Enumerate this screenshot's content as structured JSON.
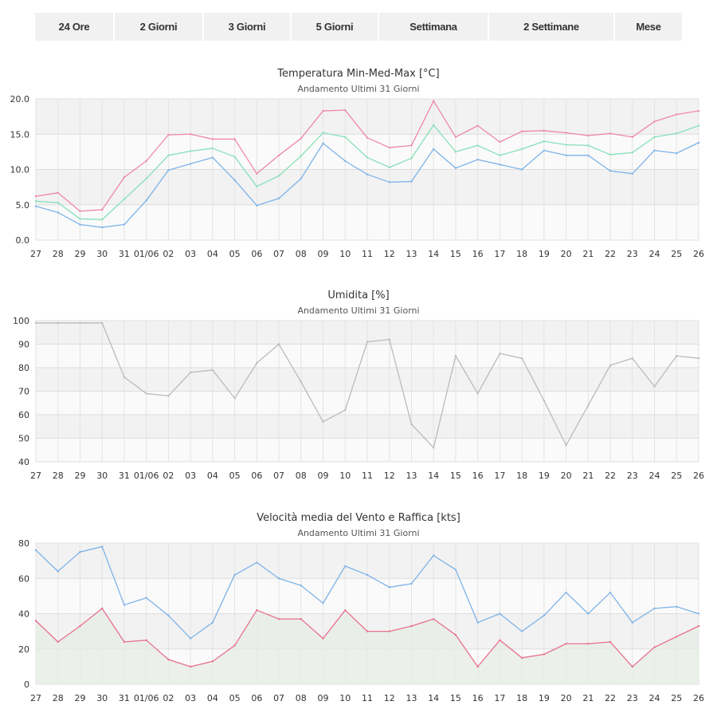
{
  "tabs": [
    {
      "label": "24 Ore"
    },
    {
      "label": "2 Giorni"
    },
    {
      "label": "3 Giorni"
    },
    {
      "label": "5 Giorni"
    },
    {
      "label": "Settimana"
    },
    {
      "label": "2 Settimane"
    },
    {
      "label": "Mese"
    }
  ],
  "colors": {
    "max": "#ee88a8",
    "med": "#86e0b8",
    "min": "#7db3e8",
    "humidity": "#bbbbbb",
    "gust": "#7db3e8",
    "wind_avg": "#e8708e",
    "band_a": "#f2f2f2",
    "band_b": "#fafafa",
    "grid": "#e4e4e4",
    "area_fill": "#e6eee4"
  },
  "chart_data": [
    {
      "type": "line",
      "title": "Temperatura Min-Med-Max [°C]",
      "subtitle": "Andamento Ultimi 31 Giorni",
      "x": [
        "27",
        "28",
        "29",
        "30",
        "31",
        "01/06",
        "02",
        "03",
        "04",
        "05",
        "06",
        "07",
        "08",
        "09",
        "10",
        "11",
        "12",
        "13",
        "14",
        "15",
        "16",
        "17",
        "18",
        "19",
        "20",
        "21",
        "22",
        "23",
        "24",
        "25",
        "26"
      ],
      "yticks": [
        "20.0",
        "15.0",
        "10.0",
        "5.0",
        "0.0"
      ],
      "ylim": [
        0,
        20
      ],
      "grid": "horizontal bands",
      "series": [
        {
          "values": [
            6.2,
            6.7,
            4.1,
            4.3,
            8.9,
            11.2,
            14.9,
            15.0,
            14.3,
            14.3,
            9.4,
            12.0,
            14.4,
            18.3,
            18.4,
            14.5,
            13.1,
            13.4,
            19.7,
            14.6,
            16.2,
            13.9,
            15.4,
            15.5,
            15.2,
            14.8,
            15.1,
            14.6,
            16.8,
            17.8,
            18.3
          ],
          "color_key": "max"
        },
        {
          "values": [
            5.5,
            5.3,
            3.0,
            2.9,
            5.8,
            8.7,
            12.0,
            12.6,
            13.0,
            11.8,
            7.6,
            9.1,
            11.9,
            15.2,
            14.6,
            11.7,
            10.3,
            11.6,
            16.3,
            12.5,
            13.4,
            12.0,
            12.9,
            14.0,
            13.5,
            13.4,
            12.1,
            12.4,
            14.6,
            15.1,
            16.2
          ],
          "color_key": "med"
        },
        {
          "values": [
            4.8,
            3.9,
            2.2,
            1.8,
            2.2,
            5.6,
            9.9,
            10.8,
            11.7,
            8.5,
            4.9,
            5.9,
            8.7,
            13.7,
            11.2,
            9.3,
            8.2,
            8.3,
            12.9,
            10.2,
            11.4,
            10.7,
            10.0,
            12.7,
            12.0,
            12.0,
            9.8,
            9.4,
            12.7,
            12.3,
            13.8
          ],
          "color_key": "min"
        }
      ]
    },
    {
      "type": "line",
      "title": "Umidita [%]",
      "subtitle": "Andamento Ultimi 31 Giorni",
      "x": [
        "27",
        "28",
        "29",
        "30",
        "31",
        "01/06",
        "02",
        "03",
        "04",
        "05",
        "06",
        "07",
        "08",
        "09",
        "10",
        "11",
        "12",
        "13",
        "14",
        "15",
        "16",
        "17",
        "18",
        "19",
        "20",
        "21",
        "22",
        "23",
        "24",
        "25",
        "26"
      ],
      "yticks": [
        "100",
        "90",
        "80",
        "70",
        "60",
        "50",
        "40"
      ],
      "ylim": [
        40,
        100
      ],
      "grid": "horizontal bands",
      "series": [
        {
          "values": [
            99,
            99,
            99,
            99,
            76,
            69,
            68,
            78,
            79,
            67,
            82,
            90,
            74,
            57,
            62,
            91,
            92,
            56,
            46,
            85,
            69,
            86,
            84,
            66,
            47,
            64,
            81,
            84,
            72,
            85,
            84
          ],
          "color_key": "humidity"
        }
      ]
    },
    {
      "type": "area",
      "title": "Velocità media del Vento e Raffica [kts]",
      "subtitle": "Andamento Ultimi 31 Giorni",
      "x": [
        "27",
        "28",
        "29",
        "30",
        "31",
        "01/06",
        "02",
        "03",
        "04",
        "05",
        "06",
        "07",
        "08",
        "09",
        "10",
        "11",
        "12",
        "13",
        "14",
        "15",
        "16",
        "17",
        "18",
        "19",
        "20",
        "21",
        "22",
        "23",
        "24",
        "25",
        "26"
      ],
      "yticks": [
        "80",
        "60",
        "40",
        "20",
        "0"
      ],
      "ylim": [
        0,
        80
      ],
      "grid": "horizontal bands",
      "series": [
        {
          "values": [
            76,
            64,
            75,
            78,
            45,
            49,
            39,
            26,
            35,
            62,
            69,
            60,
            56,
            46,
            67,
            62,
            55,
            57,
            73,
            65,
            35,
            40,
            30,
            39,
            52,
            40,
            52,
            35,
            43,
            44,
            40
          ],
          "color_key": "gust"
        },
        {
          "values": [
            36,
            24,
            33,
            43,
            24,
            25,
            14,
            10,
            13,
            22,
            42,
            37,
            37,
            26,
            42,
            30,
            30,
            33,
            37,
            28,
            10,
            25,
            15,
            17,
            23,
            23,
            24,
            10,
            21,
            27,
            33
          ],
          "color_key": "wind_avg",
          "filled": true
        }
      ]
    }
  ]
}
